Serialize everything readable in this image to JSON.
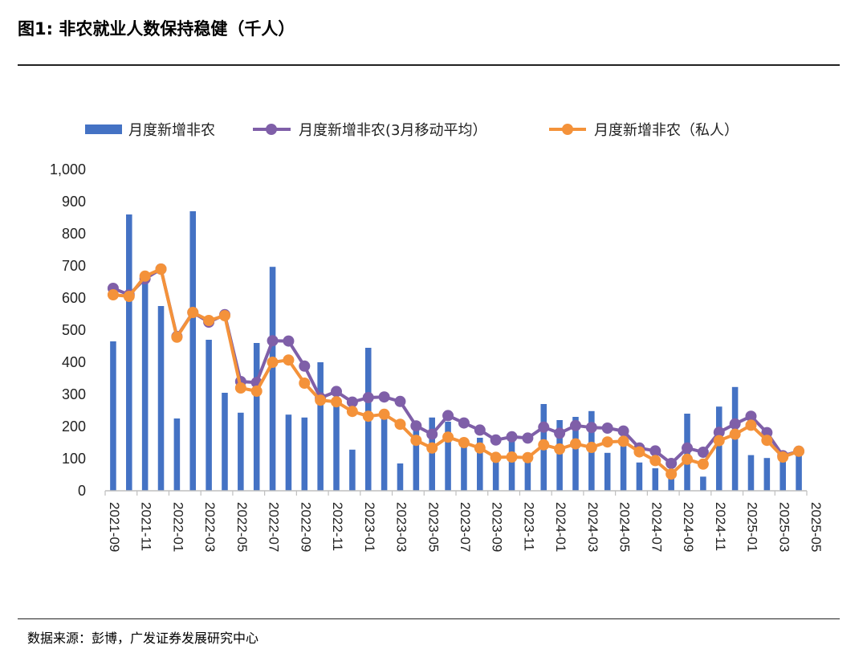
{
  "title": "图1:  非农就业人数保持稳健（千人）",
  "source": "数据来源：彭博，广发证券发展研究中心",
  "colors": {
    "bar": "#4472C4",
    "avg_line": "#7F5FA8",
    "private_line": "#F4923A"
  },
  "chart_data": {
    "type": "bar",
    "title": "",
    "xlabel": "",
    "ylabel": "",
    "ylim": [
      0,
      1000
    ],
    "yticks": [
      "0",
      "100",
      "200",
      "300",
      "400",
      "500",
      "600",
      "700",
      "800",
      "900",
      "1,000"
    ],
    "xticks": [
      "2021-09",
      "2021-11",
      "2022-01",
      "2022-03",
      "2022-05",
      "2022-07",
      "2022-09",
      "2022-11",
      "2023-01",
      "2023-03",
      "2023-05",
      "2023-07",
      "2023-09",
      "2023-11",
      "2024-01",
      "2024-03",
      "2024-05",
      "2024-07",
      "2024-09",
      "2024-11",
      "2025-01",
      "2025-03",
      "2025-05"
    ],
    "legend_position": "top",
    "x": [
      "2021-09",
      "2021-10",
      "2021-11",
      "2021-12",
      "2022-01",
      "2022-02",
      "2022-03",
      "2022-04",
      "2022-05",
      "2022-06",
      "2022-07",
      "2022-08",
      "2022-09",
      "2022-10",
      "2022-11",
      "2022-12",
      "2023-01",
      "2023-02",
      "2023-03",
      "2023-04",
      "2023-05",
      "2023-06",
      "2023-07",
      "2023-08",
      "2023-09",
      "2023-10",
      "2023-11",
      "2023-12",
      "2024-01",
      "2024-02",
      "2024-03",
      "2024-04",
      "2024-05",
      "2024-06",
      "2024-07",
      "2024-08",
      "2024-09",
      "2024-10",
      "2024-11",
      "2024-12",
      "2025-01",
      "2025-02",
      "2025-03",
      "2025-04"
    ],
    "series": [
      {
        "name": "月度新增非农",
        "type": "bar",
        "values": [
          465,
          860,
          660,
          575,
          225,
          870,
          470,
          305,
          243,
          460,
          697,
          237,
          228,
          400,
          280,
          128,
          445,
          248,
          85,
          210,
          228,
          215,
          155,
          165,
          100,
          170,
          110,
          270,
          220,
          230,
          248,
          118,
          150,
          88,
          70,
          40,
          240,
          44,
          262,
          323,
          111,
          102,
          100,
          130
        ]
      },
      {
        "name": "月度新增非农(3月移动平均)",
        "type": "line",
        "values": [
          630,
          610,
          660,
          690,
          480,
          555,
          525,
          548,
          340,
          337,
          467,
          466,
          388,
          289,
          309,
          276,
          290,
          292,
          278,
          202,
          176,
          234,
          211,
          189,
          158,
          168,
          164,
          198,
          179,
          203,
          197,
          195,
          186,
          133,
          124,
          85,
          133,
          120,
          182,
          208,
          232,
          181,
          109,
          123
        ]
      },
      {
        "name": "月度新增非农（私人）",
        "type": "line",
        "values": [
          610,
          605,
          668,
          690,
          478,
          555,
          530,
          545,
          320,
          310,
          400,
          407,
          335,
          282,
          277,
          247,
          232,
          238,
          207,
          157,
          133,
          167,
          150,
          133,
          104,
          105,
          103,
          143,
          130,
          146,
          135,
          152,
          154,
          121,
          94,
          52,
          98,
          83,
          156,
          176,
          204,
          157,
          105,
          123
        ]
      }
    ]
  },
  "legend": [
    {
      "label": "月度新增非农"
    },
    {
      "label": "月度新增非农(3月移动平均）"
    },
    {
      "label": "月度新增非农（私人）"
    }
  ]
}
